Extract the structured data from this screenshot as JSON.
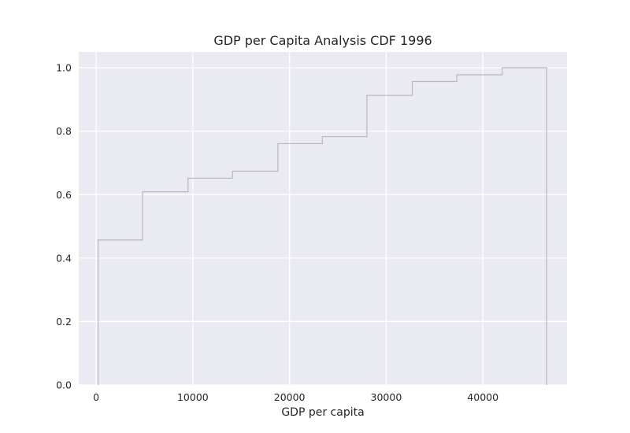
{
  "chart_data": {
    "type": "line",
    "subtype": "step-cdf",
    "title": "GDP per Capita Analysis CDF 1996",
    "xlabel": "GDP per capita",
    "ylabel": "",
    "xlim": [
      -1800,
      48700
    ],
    "ylim": [
      0,
      1.05
    ],
    "xticks": [
      0,
      10000,
      20000,
      30000,
      40000
    ],
    "xtick_labels": [
      "0",
      "10000",
      "20000",
      "30000",
      "40000"
    ],
    "yticks": [
      0.0,
      0.2,
      0.4,
      0.6,
      0.8,
      1.0
    ],
    "ytick_labels": [
      "0.0",
      "0.2",
      "0.4",
      "0.6",
      "0.8",
      "1.0"
    ],
    "grid": true,
    "style": {
      "background": "#eaeaf2",
      "grid_color": "#ffffff",
      "line_color": "#b8b8b8"
    },
    "series": [
      {
        "x": [
          200,
          4800,
          9500,
          14100,
          18800,
          23400,
          28000,
          32700,
          37300,
          42000,
          46600
        ],
        "y": [
          0.457,
          0.609,
          0.652,
          0.674,
          0.761,
          0.783,
          0.913,
          0.957,
          0.978,
          1.0,
          1.0
        ]
      }
    ]
  }
}
